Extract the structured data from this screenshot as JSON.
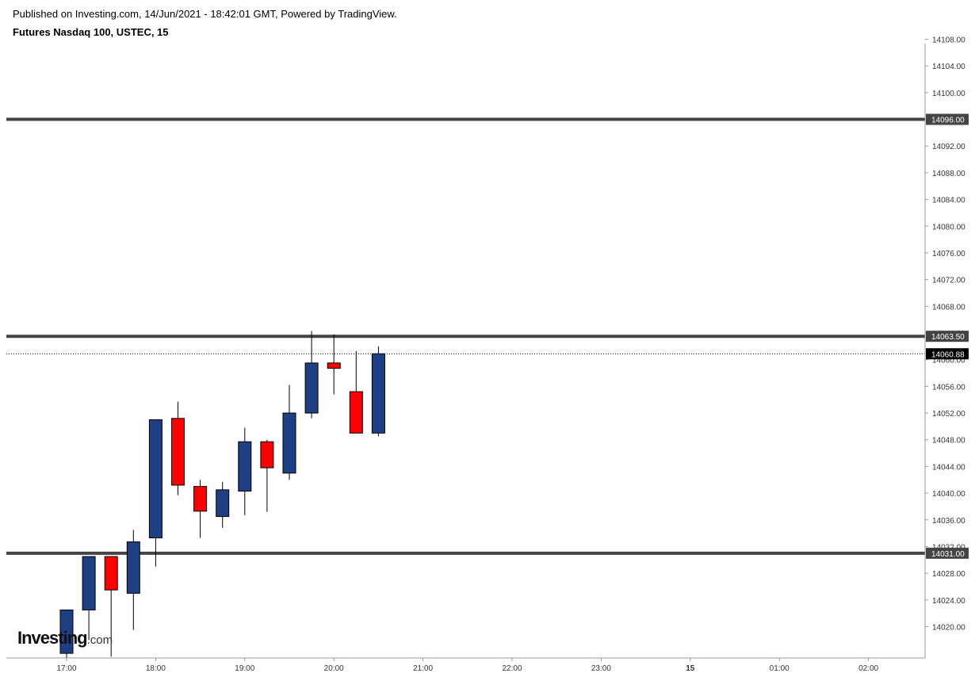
{
  "header": {
    "published": "Published on Investing.com, 14/Jun/2021 - 18:42:01 GMT, Powered by TradingView.",
    "symbol": "Futures Nasdaq 100, USTEC, 15"
  },
  "logo": {
    "name": "Investing",
    "suffix": ".com"
  },
  "colors": {
    "up": "#1f3f84",
    "down": "#ff0000",
    "level_line": "#444444",
    "axis": "#999999",
    "last_price_bg": "#000000"
  },
  "chart_data": {
    "type": "candlestick",
    "timeframe_minutes": 15,
    "ylim": [
      14015.5,
      14109
    ],
    "y_ticks": [
      14020,
      14024,
      14028,
      14032,
      14036,
      14040,
      14044,
      14048,
      14052,
      14056,
      14060,
      14064,
      14068,
      14072,
      14076,
      14080,
      14084,
      14088,
      14092,
      14096,
      14100,
      14104,
      14108
    ],
    "x_ticks": [
      "17:00",
      "18:00",
      "19:00",
      "20:00",
      "21:00",
      "22:00",
      "23:00",
      "15",
      "01:00",
      "02:00"
    ],
    "bold_x_ticks": [
      "15"
    ],
    "candles": [
      {
        "time": "17:00",
        "open": 14016,
        "high": 14022.5,
        "low": 14014,
        "close": 14022.5
      },
      {
        "time": "17:15",
        "open": 14022.5,
        "high": 14030.5,
        "low": 14018,
        "close": 14030.5
      },
      {
        "time": "17:30",
        "open": 14030.5,
        "high": 14030.5,
        "low": 14015.5,
        "close": 14025.5
      },
      {
        "time": "17:45",
        "open": 14025,
        "high": 14034.5,
        "low": 14019.5,
        "close": 14032.7
      },
      {
        "time": "18:00",
        "open": 14033.3,
        "high": 14051,
        "low": 14029,
        "close": 14051
      },
      {
        "time": "18:15",
        "open": 14051.2,
        "high": 14053.7,
        "low": 14039.7,
        "close": 14041.2
      },
      {
        "time": "18:30",
        "open": 14041,
        "high": 14042,
        "low": 14033.3,
        "close": 14037.3
      },
      {
        "time": "18:45",
        "open": 14036.5,
        "high": 14041.7,
        "low": 14034.8,
        "close": 14040.5
      },
      {
        "time": "19:00",
        "open": 14040.3,
        "high": 14049.8,
        "low": 14036.7,
        "close": 14047.7
      },
      {
        "time": "19:15",
        "open": 14047.7,
        "high": 14048,
        "low": 14037.2,
        "close": 14043.8
      },
      {
        "time": "19:30",
        "open": 14043,
        "high": 14056.2,
        "low": 14042,
        "close": 14052
      },
      {
        "time": "19:45",
        "open": 14052,
        "high": 14064.3,
        "low": 14051.2,
        "close": 14059.5
      },
      {
        "time": "20:00",
        "open": 14059.5,
        "high": 14063.8,
        "low": 14054.8,
        "close": 14058.7
      },
      {
        "time": "20:15",
        "open": 14055.2,
        "high": 14061.3,
        "low": 14049,
        "close": 14049
      },
      {
        "time": "20:30",
        "open": 14049,
        "high": 14062,
        "low": 14048.5,
        "close": 14060.88
      }
    ],
    "horizontal_levels": [
      {
        "price": 14096.0,
        "label": "14096.00"
      },
      {
        "price": 14063.5,
        "label": "14063.50"
      },
      {
        "price": 14031.0,
        "label": "14031.00"
      }
    ],
    "last_price": {
      "price": 14060.88,
      "label": "14060.88"
    }
  }
}
